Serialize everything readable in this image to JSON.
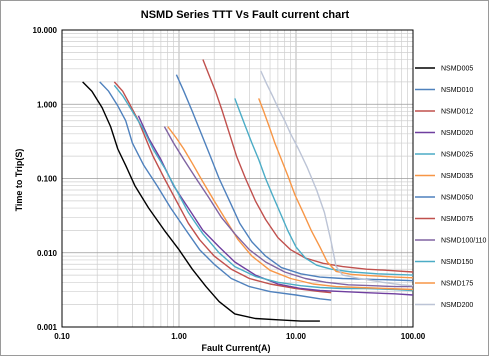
{
  "chart_data": {
    "type": "line",
    "title": "NSMD Series TTT Vs Fault current chart",
    "xlabel": "Fault Current(A)",
    "ylabel": "Time to Trip(S)",
    "xscale": "log",
    "yscale": "log",
    "xlim": [
      0.1,
      100
    ],
    "ylim": [
      0.001,
      10
    ],
    "x_tick_labels": [
      "0.10",
      "1.00",
      "10.00",
      "100.00"
    ],
    "y_tick_labels": [
      "0.001",
      "0.010",
      "0.100",
      "1.000",
      "10.000"
    ],
    "grid": true,
    "legend_position": "right",
    "series": [
      {
        "name": "NSMD005",
        "color": "#000000",
        "points": [
          [
            0.15,
            2.0
          ],
          [
            0.18,
            1.5
          ],
          [
            0.22,
            0.9
          ],
          [
            0.26,
            0.5
          ],
          [
            0.3,
            0.25
          ],
          [
            0.35,
            0.15
          ],
          [
            0.42,
            0.08
          ],
          [
            0.55,
            0.04
          ],
          [
            0.75,
            0.02
          ],
          [
            1.0,
            0.011
          ],
          [
            1.3,
            0.006
          ],
          [
            1.7,
            0.0035
          ],
          [
            2.2,
            0.0022
          ],
          [
            3.0,
            0.0015
          ],
          [
            4.5,
            0.0013
          ],
          [
            7.0,
            0.00125
          ],
          [
            11,
            0.0012
          ],
          [
            16,
            0.0012
          ]
        ]
      },
      {
        "name": "NSMD010",
        "color": "#4f81bd",
        "points": [
          [
            0.21,
            2.0
          ],
          [
            0.25,
            1.5
          ],
          [
            0.3,
            0.95
          ],
          [
            0.35,
            0.6
          ],
          [
            0.4,
            0.3
          ],
          [
            0.5,
            0.15
          ],
          [
            0.65,
            0.08
          ],
          [
            0.85,
            0.04
          ],
          [
            1.15,
            0.02
          ],
          [
            1.5,
            0.011
          ],
          [
            2.0,
            0.007
          ],
          [
            2.8,
            0.0045
          ],
          [
            4.0,
            0.0035
          ],
          [
            6.0,
            0.003
          ],
          [
            10,
            0.0027
          ],
          [
            16,
            0.0024
          ],
          [
            20,
            0.0023
          ]
        ]
      },
      {
        "name": "NSMD012",
        "color": "#c0504d",
        "points": [
          [
            0.28,
            2.0
          ],
          [
            0.33,
            1.5
          ],
          [
            0.38,
            1.0
          ],
          [
            0.45,
            0.6
          ],
          [
            0.5,
            0.4
          ],
          [
            0.6,
            0.2
          ],
          [
            0.75,
            0.1
          ],
          [
            0.95,
            0.05
          ],
          [
            1.2,
            0.025
          ],
          [
            1.5,
            0.015
          ],
          [
            2.0,
            0.009
          ],
          [
            2.8,
            0.006
          ],
          [
            4.0,
            0.0045
          ],
          [
            6.0,
            0.0038
          ],
          [
            10,
            0.0033
          ],
          [
            16,
            0.003
          ],
          [
            20,
            0.0029
          ]
        ]
      },
      {
        "name": "NSMD020",
        "color": "#6f3f9f",
        "points": [
          [
            0.45,
            0.7
          ],
          [
            0.55,
            0.35
          ],
          [
            0.7,
            0.18
          ],
          [
            0.9,
            0.08
          ],
          [
            1.2,
            0.04
          ],
          [
            1.6,
            0.02
          ],
          [
            2.2,
            0.012
          ],
          [
            3.0,
            0.0075
          ],
          [
            4.5,
            0.005
          ],
          [
            7.0,
            0.0038
          ],
          [
            11,
            0.0033
          ],
          [
            16,
            0.0031
          ],
          [
            25,
            0.003
          ],
          [
            40,
            0.0029
          ],
          [
            70,
            0.0028
          ],
          [
            100,
            0.0027
          ]
        ]
      },
      {
        "name": "NSMD025",
        "color": "#4bacc6",
        "points": [
          [
            0.28,
            1.8
          ],
          [
            0.33,
            1.3
          ],
          [
            0.4,
            0.8
          ],
          [
            0.5,
            0.45
          ],
          [
            0.6,
            0.25
          ],
          [
            0.75,
            0.14
          ],
          [
            0.95,
            0.07
          ],
          [
            1.2,
            0.035
          ],
          [
            1.6,
            0.018
          ],
          [
            2.2,
            0.01
          ],
          [
            3.0,
            0.0065
          ],
          [
            4.5,
            0.0048
          ],
          [
            7.0,
            0.004
          ],
          [
            11,
            0.0036
          ],
          [
            16,
            0.0034
          ],
          [
            25,
            0.0033
          ],
          [
            40,
            0.0033
          ],
          [
            70,
            0.0032
          ],
          [
            100,
            0.0031
          ]
        ]
      },
      {
        "name": "NSMD035",
        "color": "#f79646",
        "points": [
          [
            0.8,
            0.5
          ],
          [
            0.95,
            0.35
          ],
          [
            1.1,
            0.25
          ],
          [
            1.3,
            0.16
          ],
          [
            1.6,
            0.09
          ],
          [
            2.0,
            0.05
          ],
          [
            2.5,
            0.028
          ],
          [
            3.2,
            0.015
          ],
          [
            4.2,
            0.009
          ],
          [
            6.0,
            0.0058
          ],
          [
            9.0,
            0.0045
          ],
          [
            14,
            0.0038
          ],
          [
            22,
            0.0035
          ],
          [
            35,
            0.0034
          ],
          [
            60,
            0.0033
          ],
          [
            100,
            0.0032
          ]
        ]
      },
      {
        "name": "NSMD050",
        "color": "#4f81bd",
        "points": [
          [
            0.95,
            2.5
          ],
          [
            1.1,
            1.5
          ],
          [
            1.3,
            0.8
          ],
          [
            1.55,
            0.4
          ],
          [
            1.85,
            0.2
          ],
          [
            2.2,
            0.1
          ],
          [
            2.7,
            0.05
          ],
          [
            3.3,
            0.025
          ],
          [
            4.2,
            0.014
          ],
          [
            5.5,
            0.009
          ],
          [
            7.5,
            0.0063
          ],
          [
            11,
            0.0052
          ],
          [
            16,
            0.0047
          ],
          [
            25,
            0.0045
          ],
          [
            40,
            0.0044
          ],
          [
            70,
            0.0043
          ],
          [
            100,
            0.0042
          ]
        ]
      },
      {
        "name": "NSMD075",
        "color": "#c0504d",
        "points": [
          [
            1.6,
            4.0
          ],
          [
            1.8,
            2.5
          ],
          [
            2.05,
            1.5
          ],
          [
            2.35,
            0.8
          ],
          [
            2.7,
            0.4
          ],
          [
            3.1,
            0.2
          ],
          [
            3.7,
            0.1
          ],
          [
            4.5,
            0.05
          ],
          [
            5.5,
            0.028
          ],
          [
            7.0,
            0.016
          ],
          [
            9.0,
            0.011
          ],
          [
            12,
            0.0085
          ],
          [
            17,
            0.0072
          ],
          [
            25,
            0.0065
          ],
          [
            40,
            0.006
          ],
          [
            60,
            0.0058
          ],
          [
            100,
            0.0055
          ]
        ]
      },
      {
        "name": "NSMD100/110",
        "color": "#8064a2",
        "points": [
          [
            0.75,
            0.5
          ],
          [
            0.9,
            0.3
          ],
          [
            1.1,
            0.18
          ],
          [
            1.4,
            0.1
          ],
          [
            1.8,
            0.055
          ],
          [
            2.3,
            0.03
          ],
          [
            3.0,
            0.018
          ],
          [
            4.0,
            0.011
          ],
          [
            5.5,
            0.0075
          ],
          [
            8.0,
            0.0055
          ],
          [
            12,
            0.0045
          ],
          [
            18,
            0.004
          ],
          [
            28,
            0.0037
          ],
          [
            45,
            0.0036
          ],
          [
            70,
            0.0035
          ],
          [
            100,
            0.0035
          ]
        ]
      },
      {
        "name": "NSMD150",
        "color": "#4bacc6",
        "points": [
          [
            3.0,
            1.2
          ],
          [
            3.3,
            0.8
          ],
          [
            3.7,
            0.5
          ],
          [
            4.2,
            0.3
          ],
          [
            4.8,
            0.18
          ],
          [
            5.5,
            0.1
          ],
          [
            6.3,
            0.06
          ],
          [
            7.3,
            0.035
          ],
          [
            8.5,
            0.02
          ],
          [
            10,
            0.012
          ],
          [
            12,
            0.0085
          ],
          [
            15,
            0.0068
          ],
          [
            20,
            0.006
          ],
          [
            30,
            0.0055
          ],
          [
            50,
            0.0052
          ],
          [
            100,
            0.005
          ]
        ]
      },
      {
        "name": "NSMD175",
        "color": "#f79646",
        "points": [
          [
            4.8,
            1.2
          ],
          [
            5.3,
            0.8
          ],
          [
            5.9,
            0.5
          ],
          [
            6.6,
            0.3
          ],
          [
            7.5,
            0.18
          ],
          [
            8.5,
            0.11
          ],
          [
            9.8,
            0.06
          ],
          [
            11.5,
            0.035
          ],
          [
            13.5,
            0.02
          ],
          [
            16,
            0.012
          ],
          [
            18.5,
            0.0075
          ],
          [
            22,
            0.0056
          ],
          [
            30,
            0.0051
          ],
          [
            45,
            0.0049
          ],
          [
            70,
            0.0047
          ],
          [
            100,
            0.0046
          ]
        ]
      },
      {
        "name": "NSMD200",
        "color": "#bcc4d6",
        "points": [
          [
            5.0,
            2.8
          ],
          [
            5.6,
            1.9
          ],
          [
            6.3,
            1.3
          ],
          [
            7.0,
            0.9
          ],
          [
            8.0,
            0.6
          ],
          [
            9.0,
            0.4
          ],
          [
            10.5,
            0.25
          ],
          [
            12.5,
            0.14
          ],
          [
            15,
            0.07
          ],
          [
            17.5,
            0.035
          ],
          [
            20,
            0.014
          ],
          [
            22,
            0.0065
          ],
          [
            25,
            0.005
          ],
          [
            35,
            0.0045
          ],
          [
            55,
            0.004
          ],
          [
            80,
            0.0037
          ],
          [
            100,
            0.0036
          ]
        ]
      }
    ]
  }
}
